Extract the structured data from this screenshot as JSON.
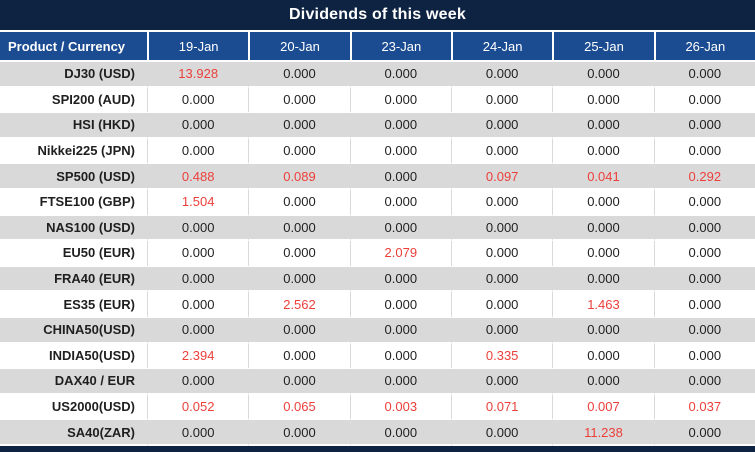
{
  "title": "Dividends of this week",
  "colors": {
    "title_bg": "#0e2342",
    "header_bg": "#1b4c92",
    "row_alt_bg": "#d9d9d9",
    "row_bg": "#ffffff",
    "grid_line": "#d9d9d9",
    "value_red": "#ec3f3a",
    "value_dark": "#1f1f1f",
    "header_text": "#ffffff"
  },
  "table": {
    "product_header": "Product / Currency",
    "date_headers": [
      "19-Jan",
      "20-Jan",
      "23-Jan",
      "24-Jan",
      "25-Jan",
      "26-Jan"
    ],
    "rows": [
      {
        "product": "DJ30 (USD)",
        "values": [
          {
            "v": "13.928",
            "red": true
          },
          {
            "v": "0.000",
            "red": false
          },
          {
            "v": "0.000",
            "red": false
          },
          {
            "v": "0.000",
            "red": false
          },
          {
            "v": "0.000",
            "red": false
          },
          {
            "v": "0.000",
            "red": false
          }
        ]
      },
      {
        "product": "SPI200 (AUD)",
        "values": [
          {
            "v": "0.000",
            "red": false
          },
          {
            "v": "0.000",
            "red": false
          },
          {
            "v": "0.000",
            "red": false
          },
          {
            "v": "0.000",
            "red": false
          },
          {
            "v": "0.000",
            "red": false
          },
          {
            "v": "0.000",
            "red": false
          }
        ]
      },
      {
        "product": "HSI (HKD)",
        "values": [
          {
            "v": "0.000",
            "red": false
          },
          {
            "v": "0.000",
            "red": false
          },
          {
            "v": "0.000",
            "red": false
          },
          {
            "v": "0.000",
            "red": false
          },
          {
            "v": "0.000",
            "red": false
          },
          {
            "v": "0.000",
            "red": false
          }
        ]
      },
      {
        "product": "Nikkei225 (JPN)",
        "values": [
          {
            "v": "0.000",
            "red": false
          },
          {
            "v": "0.000",
            "red": false
          },
          {
            "v": "0.000",
            "red": false
          },
          {
            "v": "0.000",
            "red": false
          },
          {
            "v": "0.000",
            "red": false
          },
          {
            "v": "0.000",
            "red": false
          }
        ]
      },
      {
        "product": "SP500 (USD)",
        "values": [
          {
            "v": "0.488",
            "red": true
          },
          {
            "v": "0.089",
            "red": true
          },
          {
            "v": "0.000",
            "red": false
          },
          {
            "v": "0.097",
            "red": true
          },
          {
            "v": "0.041",
            "red": true
          },
          {
            "v": "0.292",
            "red": true
          }
        ]
      },
      {
        "product": "FTSE100 (GBP)",
        "values": [
          {
            "v": "1.504",
            "red": true
          },
          {
            "v": "0.000",
            "red": false
          },
          {
            "v": "0.000",
            "red": false
          },
          {
            "v": "0.000",
            "red": false
          },
          {
            "v": "0.000",
            "red": false
          },
          {
            "v": "0.000",
            "red": false
          }
        ]
      },
      {
        "product": "NAS100 (USD)",
        "values": [
          {
            "v": "0.000",
            "red": false
          },
          {
            "v": "0.000",
            "red": false
          },
          {
            "v": "0.000",
            "red": false
          },
          {
            "v": "0.000",
            "red": false
          },
          {
            "v": "0.000",
            "red": false
          },
          {
            "v": "0.000",
            "red": false
          }
        ]
      },
      {
        "product": "EU50 (EUR)",
        "values": [
          {
            "v": "0.000",
            "red": false
          },
          {
            "v": "0.000",
            "red": false
          },
          {
            "v": "2.079",
            "red": true
          },
          {
            "v": "0.000",
            "red": false
          },
          {
            "v": "0.000",
            "red": false
          },
          {
            "v": "0.000",
            "red": false
          }
        ]
      },
      {
        "product": "FRA40 (EUR)",
        "values": [
          {
            "v": "0.000",
            "red": false
          },
          {
            "v": "0.000",
            "red": false
          },
          {
            "v": "0.000",
            "red": false
          },
          {
            "v": "0.000",
            "red": false
          },
          {
            "v": "0.000",
            "red": false
          },
          {
            "v": "0.000",
            "red": false
          }
        ]
      },
      {
        "product": "ES35 (EUR)",
        "values": [
          {
            "v": "0.000",
            "red": false
          },
          {
            "v": "2.562",
            "red": true
          },
          {
            "v": "0.000",
            "red": false
          },
          {
            "v": "0.000",
            "red": false
          },
          {
            "v": "1.463",
            "red": true
          },
          {
            "v": "0.000",
            "red": false
          }
        ]
      },
      {
        "product": "CHINA50(USD)",
        "values": [
          {
            "v": "0.000",
            "red": false
          },
          {
            "v": "0.000",
            "red": false
          },
          {
            "v": "0.000",
            "red": false
          },
          {
            "v": "0.000",
            "red": false
          },
          {
            "v": "0.000",
            "red": false
          },
          {
            "v": "0.000",
            "red": false
          }
        ]
      },
      {
        "product": "INDIA50(USD)",
        "values": [
          {
            "v": "2.394",
            "red": true
          },
          {
            "v": "0.000",
            "red": false
          },
          {
            "v": "0.000",
            "red": false
          },
          {
            "v": "0.335",
            "red": true
          },
          {
            "v": "0.000",
            "red": false
          },
          {
            "v": "0.000",
            "red": false
          }
        ]
      },
      {
        "product": "DAX40 / EUR",
        "values": [
          {
            "v": "0.000",
            "red": false
          },
          {
            "v": "0.000",
            "red": false
          },
          {
            "v": "0.000",
            "red": false
          },
          {
            "v": "0.000",
            "red": false
          },
          {
            "v": "0.000",
            "red": false
          },
          {
            "v": "0.000",
            "red": false
          }
        ]
      },
      {
        "product": "US2000(USD)",
        "values": [
          {
            "v": "0.052",
            "red": true
          },
          {
            "v": "0.065",
            "red": true
          },
          {
            "v": "0.003",
            "red": true
          },
          {
            "v": "0.071",
            "red": true
          },
          {
            "v": "0.007",
            "red": true
          },
          {
            "v": "0.037",
            "red": true
          }
        ]
      },
      {
        "product": "SA40(ZAR)",
        "values": [
          {
            "v": "0.000",
            "red": false
          },
          {
            "v": "0.000",
            "red": false
          },
          {
            "v": "0.000",
            "red": false
          },
          {
            "v": "0.000",
            "red": false
          },
          {
            "v": "11.238",
            "red": true
          },
          {
            "v": "0.000",
            "red": false
          }
        ]
      }
    ]
  }
}
